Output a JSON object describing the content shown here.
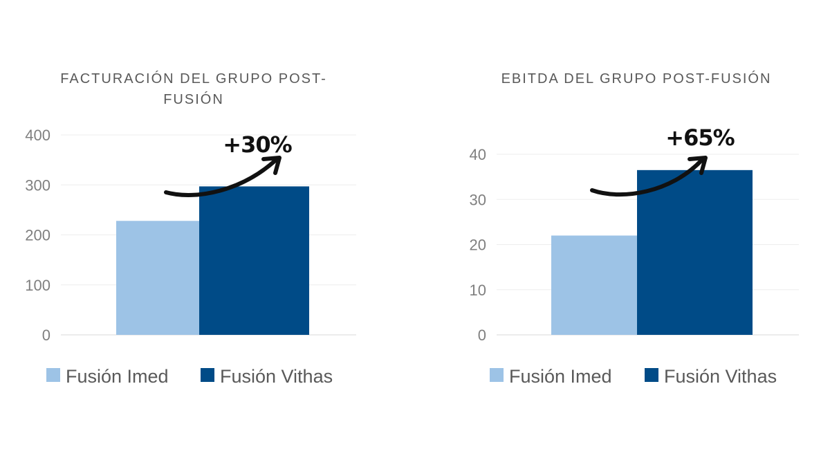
{
  "chart_data": [
    {
      "type": "bar",
      "title_lines": [
        "FACTURACIÓN DEL GRUPO POST-",
        "FUSIÓN"
      ],
      "categories": [
        "Fusión Imed",
        "Fusión Vithas"
      ],
      "values": [
        228,
        297
      ],
      "colors": [
        "#9dc3e6",
        "#004b87"
      ],
      "ylim": [
        0,
        400
      ],
      "yticks": [
        "0",
        "100",
        "200",
        "300",
        "400"
      ],
      "grid": true,
      "legend": "bottom",
      "annotation": "+30%"
    },
    {
      "type": "bar",
      "title_lines": [
        "EBITDA DEL GRUPO POST-FUSIÓN"
      ],
      "categories": [
        "Fusión Imed",
        "Fusión Vithas"
      ],
      "values": [
        22,
        36.5
      ],
      "colors": [
        "#9dc3e6",
        "#004b87"
      ],
      "ylim": [
        0,
        40
      ],
      "yticks": [
        "0",
        "10",
        "20",
        "30",
        "40"
      ],
      "grid": true,
      "legend": "bottom",
      "annotation": "+65%"
    }
  ]
}
